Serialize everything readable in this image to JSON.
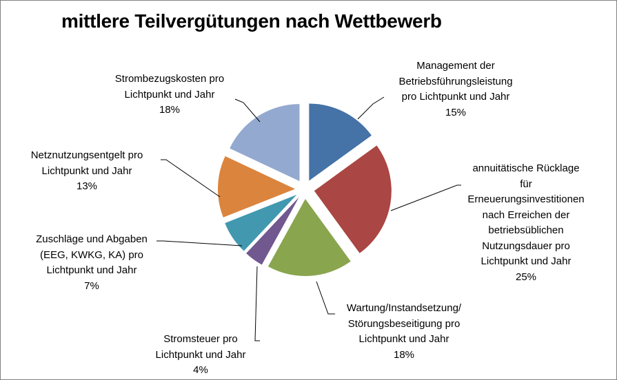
{
  "chart_data": {
    "type": "pie",
    "title": "mittlere Teilvergütungen nach Wettbewerb",
    "exploded": true,
    "start": "12 o'clock, clockwise",
    "slices": [
      {
        "label": "Management der\nBetriebsführungsleistung\npro Lichtpunkt und Jahr",
        "value": 15,
        "value_label": "15%",
        "color": "#4572A7"
      },
      {
        "label": "annuitätische Rücklage für\nErneuerungsinvestitionen\nnach Erreichen der\nbetriebsüblichen\nNutzungsdauer pro\nLichtpunkt und Jahr",
        "value": 25,
        "value_label": "25%",
        "color": "#AA4643"
      },
      {
        "label": "Wartung/Instandsetzung/\nStörungsbeseitigung pro\nLichtpunkt und Jahr",
        "value": 18,
        "value_label": "18%",
        "color": "#89A54E"
      },
      {
        "label": "Stromsteuer pro\nLichtpunkt und Jahr",
        "value": 4,
        "value_label": "4%",
        "color": "#71588F"
      },
      {
        "label": "Zuschläge und Abgaben\n(EEG, KWKG, KA) pro\nLichtpunkt und Jahr",
        "value": 7,
        "value_label": "7%",
        "color": "#4198AF"
      },
      {
        "label": "Netznutzungsentgelt pro\nLichtpunkt und Jahr",
        "value": 13,
        "value_label": "13%",
        "color": "#DB843D"
      },
      {
        "label": "Strombezugskosten pro\nLichtpunkt und Jahr",
        "value": 18,
        "value_label": "18%",
        "color": "#93A9CF"
      }
    ]
  }
}
